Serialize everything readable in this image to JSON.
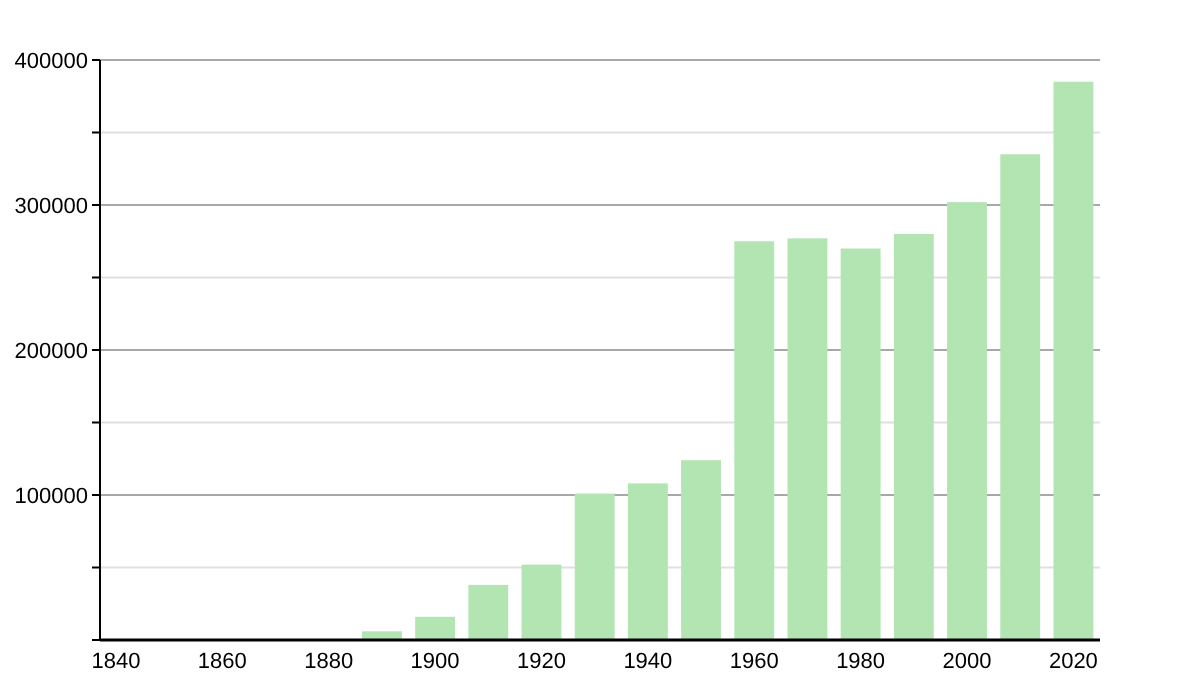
{
  "chart_data": {
    "type": "bar",
    "x": [
      1890,
      1900,
      1910,
      1920,
      1930,
      1940,
      1950,
      1960,
      1970,
      1980,
      1990,
      2000,
      2010,
      2020
    ],
    "values": [
      6000,
      16000,
      38000,
      52000,
      101000,
      108000,
      124000,
      275000,
      277000,
      270000,
      280000,
      302000,
      335000,
      385000
    ],
    "color": "#b3e5b3",
    "xlim": [
      1837,
      2025
    ],
    "xticks": [
      1840,
      1860,
      1880,
      1900,
      1920,
      1940,
      1960,
      1980,
      2000,
      2020
    ],
    "ylim": [
      0,
      400000
    ],
    "yticks": [
      {
        "value": 0,
        "label": null
      },
      {
        "value": 50000,
        "label": null
      },
      100000,
      {
        "value": 150000,
        "label": null
      },
      200000,
      {
        "value": 250000,
        "label": null
      },
      300000,
      {
        "value": 350000,
        "label": null
      },
      400000
    ],
    "grid": true
  }
}
